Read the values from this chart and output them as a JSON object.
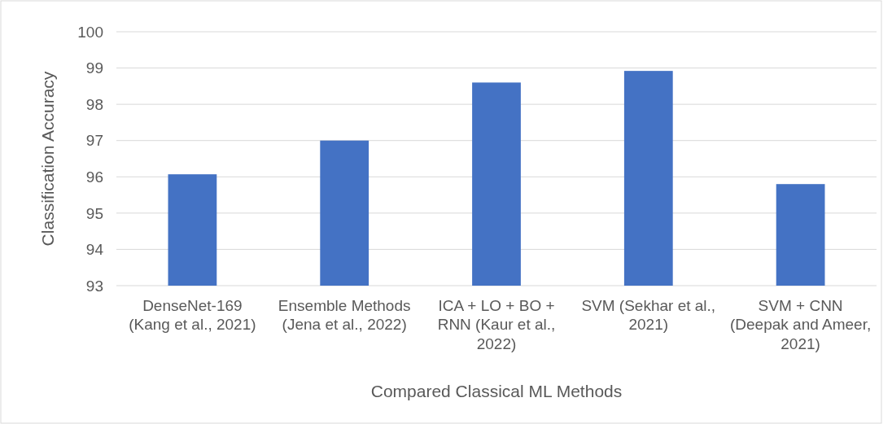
{
  "chart_data": {
    "type": "bar",
    "xlabel": "Compared Classical ML Methods",
    "ylabel": "Classification Accuracy",
    "categories": [
      "DenseNet-169 (Kang et al., 2021)",
      "Ensemble Methods (Jena et al., 2022)",
      "ICA + LO + BO + RNN (Kaur et al., 2022)",
      "SVM (Sekhar et al., 2021)",
      "SVM + CNN (Deepak and Ameer, 2021)"
    ],
    "values": [
      96.07,
      97.0,
      98.6,
      98.92,
      95.8
    ],
    "color": "#4472c4",
    "ylim": [
      93,
      100
    ],
    "yticks": [
      93,
      94,
      95,
      96,
      97,
      98,
      99,
      100
    ],
    "grid": "y"
  }
}
